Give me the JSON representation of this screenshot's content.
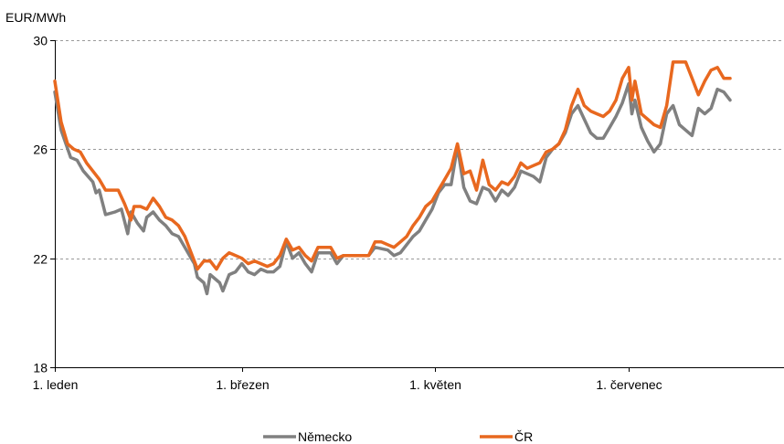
{
  "chart_data": {
    "type": "line",
    "ylabel": "EUR/MWh",
    "ylim": [
      18,
      30
    ],
    "yticks": [
      18,
      22,
      26,
      30
    ],
    "xlim": [
      1,
      231
    ],
    "xticks": [
      {
        "x": 1,
        "label": "1. leden"
      },
      {
        "x": 60,
        "label": "1. březen"
      },
      {
        "x": 121,
        "label": "1. květen"
      },
      {
        "x": 182,
        "label": "1. červenec"
      }
    ],
    "grid": "horizontal-dashed",
    "legend_position": "bottom",
    "series": [
      {
        "name": "Německo",
        "color": "#808080",
        "points": [
          [
            1,
            28.1
          ],
          [
            3,
            26.7
          ],
          [
            6,
            25.7
          ],
          [
            8,
            25.6
          ],
          [
            10,
            25.2
          ],
          [
            13,
            24.8
          ],
          [
            14,
            24.4
          ],
          [
            15,
            24.5
          ],
          [
            17,
            23.6
          ],
          [
            20,
            23.7
          ],
          [
            22,
            23.8
          ],
          [
            24,
            22.9
          ],
          [
            25,
            23.7
          ],
          [
            27,
            23.3
          ],
          [
            29,
            23.0
          ],
          [
            30,
            23.5
          ],
          [
            32,
            23.7
          ],
          [
            34,
            23.4
          ],
          [
            36,
            23.2
          ],
          [
            38,
            22.9
          ],
          [
            40,
            22.8
          ],
          [
            42,
            22.4
          ],
          [
            44,
            22.0
          ],
          [
            45,
            21.8
          ],
          [
            46,
            21.3
          ],
          [
            48,
            21.1
          ],
          [
            49,
            20.7
          ],
          [
            50,
            21.4
          ],
          [
            52,
            21.2
          ],
          [
            53,
            21.1
          ],
          [
            54,
            20.8
          ],
          [
            56,
            21.4
          ],
          [
            58,
            21.5
          ],
          [
            60,
            21.8
          ],
          [
            62,
            21.5
          ],
          [
            64,
            21.4
          ],
          [
            66,
            21.6
          ],
          [
            68,
            21.5
          ],
          [
            70,
            21.5
          ],
          [
            72,
            21.7
          ],
          [
            74,
            22.6
          ],
          [
            76,
            22.0
          ],
          [
            78,
            22.2
          ],
          [
            80,
            21.8
          ],
          [
            82,
            21.5
          ],
          [
            84,
            22.2
          ],
          [
            86,
            22.2
          ],
          [
            88,
            22.2
          ],
          [
            90,
            21.8
          ],
          [
            92,
            22.1
          ],
          [
            100,
            22.1
          ],
          [
            102,
            22.4
          ],
          [
            106,
            22.3
          ],
          [
            108,
            22.1
          ],
          [
            110,
            22.2
          ],
          [
            112,
            22.5
          ],
          [
            114,
            22.8
          ],
          [
            116,
            23.0
          ],
          [
            118,
            23.4
          ],
          [
            120,
            23.8
          ],
          [
            122,
            24.4
          ],
          [
            124,
            24.7
          ],
          [
            126,
            24.7
          ],
          [
            128,
            26.1
          ],
          [
            130,
            24.6
          ],
          [
            132,
            24.1
          ],
          [
            134,
            24.0
          ],
          [
            136,
            24.6
          ],
          [
            138,
            24.5
          ],
          [
            140,
            24.1
          ],
          [
            142,
            24.5
          ],
          [
            144,
            24.3
          ],
          [
            146,
            24.6
          ],
          [
            148,
            25.2
          ],
          [
            150,
            25.1
          ],
          [
            152,
            25.0
          ],
          [
            154,
            24.8
          ],
          [
            156,
            25.7
          ],
          [
            158,
            26.0
          ],
          [
            160,
            26.2
          ],
          [
            162,
            26.6
          ],
          [
            164,
            27.3
          ],
          [
            166,
            27.6
          ],
          [
            168,
            27.1
          ],
          [
            170,
            26.6
          ],
          [
            172,
            26.4
          ],
          [
            174,
            26.4
          ],
          [
            176,
            26.8
          ],
          [
            178,
            27.2
          ],
          [
            180,
            27.7
          ],
          [
            182,
            28.4
          ],
          [
            183,
            27.3
          ],
          [
            184,
            27.8
          ],
          [
            186,
            26.8
          ],
          [
            188,
            26.3
          ],
          [
            190,
            25.9
          ],
          [
            192,
            26.2
          ],
          [
            194,
            27.3
          ],
          [
            196,
            27.6
          ],
          [
            198,
            26.9
          ],
          [
            200,
            26.7
          ],
          [
            202,
            26.5
          ],
          [
            204,
            27.5
          ],
          [
            206,
            27.3
          ],
          [
            208,
            27.5
          ],
          [
            210,
            28.2
          ],
          [
            212,
            28.1
          ],
          [
            214,
            27.8
          ]
        ]
      },
      {
        "name": "ČR",
        "color": "#E8681F",
        "points": [
          [
            1,
            28.5
          ],
          [
            3,
            27.0
          ],
          [
            5,
            26.2
          ],
          [
            7,
            26.0
          ],
          [
            9,
            25.9
          ],
          [
            11,
            25.5
          ],
          [
            13,
            25.2
          ],
          [
            15,
            24.9
          ],
          [
            17,
            24.5
          ],
          [
            19,
            24.5
          ],
          [
            21,
            24.5
          ],
          [
            23,
            24.0
          ],
          [
            25,
            23.4
          ],
          [
            26,
            23.9
          ],
          [
            28,
            23.9
          ],
          [
            30,
            23.8
          ],
          [
            32,
            24.2
          ],
          [
            34,
            23.9
          ],
          [
            36,
            23.5
          ],
          [
            38,
            23.4
          ],
          [
            40,
            23.2
          ],
          [
            42,
            22.8
          ],
          [
            44,
            22.2
          ],
          [
            46,
            21.6
          ],
          [
            48,
            21.9
          ],
          [
            50,
            21.9
          ],
          [
            52,
            21.6
          ],
          [
            54,
            22.0
          ],
          [
            56,
            22.2
          ],
          [
            58,
            22.1
          ],
          [
            60,
            22.0
          ],
          [
            62,
            21.8
          ],
          [
            64,
            21.9
          ],
          [
            66,
            21.8
          ],
          [
            68,
            21.7
          ],
          [
            70,
            21.8
          ],
          [
            72,
            22.1
          ],
          [
            74,
            22.7
          ],
          [
            76,
            22.3
          ],
          [
            78,
            22.4
          ],
          [
            80,
            22.1
          ],
          [
            82,
            21.9
          ],
          [
            84,
            22.4
          ],
          [
            86,
            22.4
          ],
          [
            88,
            22.4
          ],
          [
            90,
            22.0
          ],
          [
            92,
            22.1
          ],
          [
            100,
            22.1
          ],
          [
            102,
            22.6
          ],
          [
            104,
            22.6
          ],
          [
            106,
            22.5
          ],
          [
            108,
            22.4
          ],
          [
            110,
            22.6
          ],
          [
            112,
            22.8
          ],
          [
            114,
            23.2
          ],
          [
            116,
            23.5
          ],
          [
            118,
            23.9
          ],
          [
            120,
            24.1
          ],
          [
            122,
            24.5
          ],
          [
            124,
            24.9
          ],
          [
            126,
            25.3
          ],
          [
            128,
            26.2
          ],
          [
            130,
            25.1
          ],
          [
            132,
            25.2
          ],
          [
            134,
            24.5
          ],
          [
            136,
            25.6
          ],
          [
            138,
            24.7
          ],
          [
            140,
            24.5
          ],
          [
            142,
            24.8
          ],
          [
            144,
            24.7
          ],
          [
            146,
            25.0
          ],
          [
            148,
            25.5
          ],
          [
            150,
            25.3
          ],
          [
            152,
            25.4
          ],
          [
            154,
            25.5
          ],
          [
            156,
            25.9
          ],
          [
            158,
            26.0
          ],
          [
            160,
            26.2
          ],
          [
            162,
            26.7
          ],
          [
            164,
            27.6
          ],
          [
            166,
            28.2
          ],
          [
            168,
            27.6
          ],
          [
            170,
            27.4
          ],
          [
            172,
            27.3
          ],
          [
            174,
            27.2
          ],
          [
            176,
            27.4
          ],
          [
            178,
            27.8
          ],
          [
            180,
            28.6
          ],
          [
            182,
            29.0
          ],
          [
            183,
            27.8
          ],
          [
            184,
            28.5
          ],
          [
            186,
            27.3
          ],
          [
            188,
            27.1
          ],
          [
            190,
            26.9
          ],
          [
            192,
            26.8
          ],
          [
            194,
            27.6
          ],
          [
            196,
            29.2
          ],
          [
            198,
            29.2
          ],
          [
            200,
            29.2
          ],
          [
            202,
            28.6
          ],
          [
            204,
            28.0
          ],
          [
            206,
            28.5
          ],
          [
            208,
            28.9
          ],
          [
            210,
            29.0
          ],
          [
            212,
            28.6
          ],
          [
            214,
            28.6
          ]
        ]
      }
    ]
  }
}
